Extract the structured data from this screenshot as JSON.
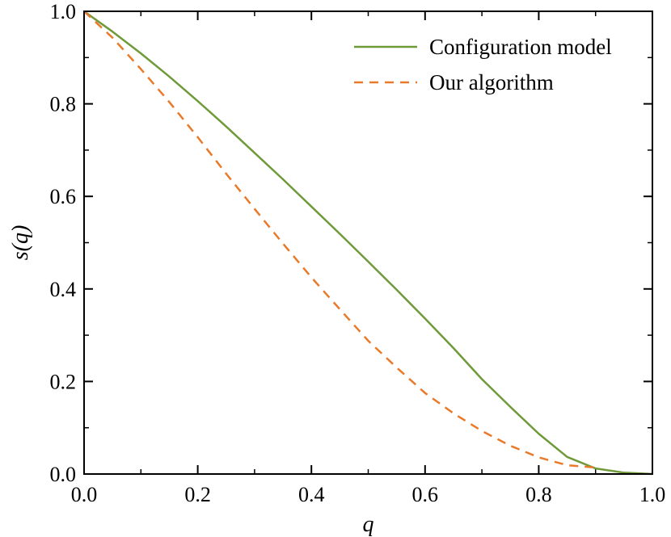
{
  "chart_data": {
    "type": "line",
    "xlabel": "q",
    "ylabel": "s(q)",
    "xlim": [
      0,
      1
    ],
    "ylim": [
      0,
      1
    ],
    "xticks": [
      "0.0",
      "0.2",
      "0.4",
      "0.6",
      "0.8",
      "1.0"
    ],
    "yticks": [
      "0.0",
      "0.2",
      "0.4",
      "0.6",
      "0.8",
      "1.0"
    ],
    "grid": false,
    "legend_position": "top-right",
    "series": [
      {
        "name": "Configuration model",
        "color": "#6f9a3a",
        "dash": "solid",
        "x": [
          0.0,
          0.05,
          0.1,
          0.15,
          0.2,
          0.25,
          0.3,
          0.35,
          0.4,
          0.45,
          0.5,
          0.55,
          0.6,
          0.65,
          0.7,
          0.75,
          0.8,
          0.85,
          0.9,
          0.95,
          1.0
        ],
        "y": [
          1.0,
          0.956,
          0.909,
          0.859,
          0.806,
          0.751,
          0.694,
          0.637,
          0.578,
          0.519,
          0.459,
          0.398,
          0.336,
          0.272,
          0.205,
          0.145,
          0.087,
          0.037,
          0.012,
          0.003,
          0.0
        ]
      },
      {
        "name": "Our algorithm",
        "color": "#e87a2a",
        "dash": "dashed",
        "x": [
          0.0,
          0.05,
          0.1,
          0.15,
          0.2,
          0.25,
          0.3,
          0.35,
          0.4,
          0.45,
          0.5,
          0.55,
          0.6,
          0.65,
          0.7,
          0.75,
          0.8,
          0.85,
          0.9
        ],
        "y": [
          1.0,
          0.943,
          0.875,
          0.804,
          0.728,
          0.649,
          0.573,
          0.498,
          0.425,
          0.356,
          0.288,
          0.23,
          0.175,
          0.131,
          0.093,
          0.061,
          0.036,
          0.019,
          0.014
        ]
      }
    ]
  }
}
